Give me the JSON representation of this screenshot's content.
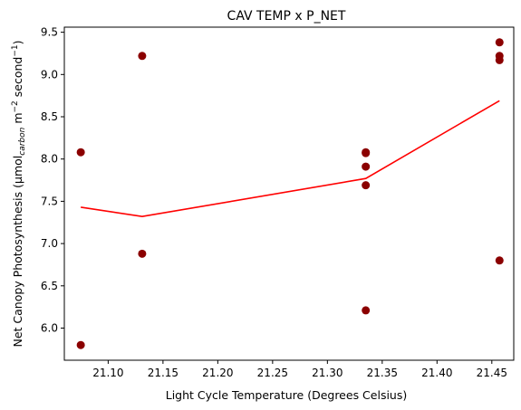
{
  "chart_data": {
    "type": "scatter",
    "title": "CAV TEMP x P_NET",
    "xlabel": "Light Cycle Temperature (Degrees Celsius)",
    "ylabel": {
      "prefix": "Net Canopy Photosynthesis (μmol",
      "sub": "carbon",
      "mid1": " m",
      "sup1": "−2",
      "mid2": " second",
      "sup2": "−1",
      "suffix": ")"
    },
    "xlim": [
      21.06,
      21.47
    ],
    "ylim": [
      5.62,
      9.56
    ],
    "xticks": [
      21.1,
      21.15,
      21.2,
      21.25,
      21.3,
      21.35,
      21.4,
      21.45
    ],
    "xtick_labels": [
      "21.10",
      "21.15",
      "21.20",
      "21.25",
      "21.30",
      "21.35",
      "21.40",
      "21.45"
    ],
    "yticks": [
      6.0,
      6.5,
      7.0,
      7.5,
      8.0,
      8.5,
      9.0,
      9.5
    ],
    "ytick_labels": [
      "6.0",
      "6.5",
      "7.0",
      "7.5",
      "8.0",
      "8.5",
      "9.0",
      "9.5"
    ],
    "grid": false,
    "colors": {
      "points": "#8b0000",
      "line": "#ff0000"
    },
    "series": [
      {
        "type": "scatter",
        "points": [
          [
            21.075,
            8.08
          ],
          [
            21.075,
            5.8
          ],
          [
            21.131,
            9.22
          ],
          [
            21.131,
            6.88
          ],
          [
            21.335,
            8.08
          ],
          [
            21.335,
            8.07
          ],
          [
            21.335,
            7.91
          ],
          [
            21.335,
            7.69
          ],
          [
            21.335,
            6.21
          ],
          [
            21.457,
            9.38
          ],
          [
            21.457,
            9.22
          ],
          [
            21.457,
            9.17
          ],
          [
            21.457,
            6.8
          ]
        ]
      },
      {
        "type": "line",
        "points": [
          [
            21.075,
            7.43
          ],
          [
            21.131,
            7.32
          ],
          [
            21.335,
            7.77
          ],
          [
            21.457,
            8.69
          ]
        ]
      }
    ]
  }
}
